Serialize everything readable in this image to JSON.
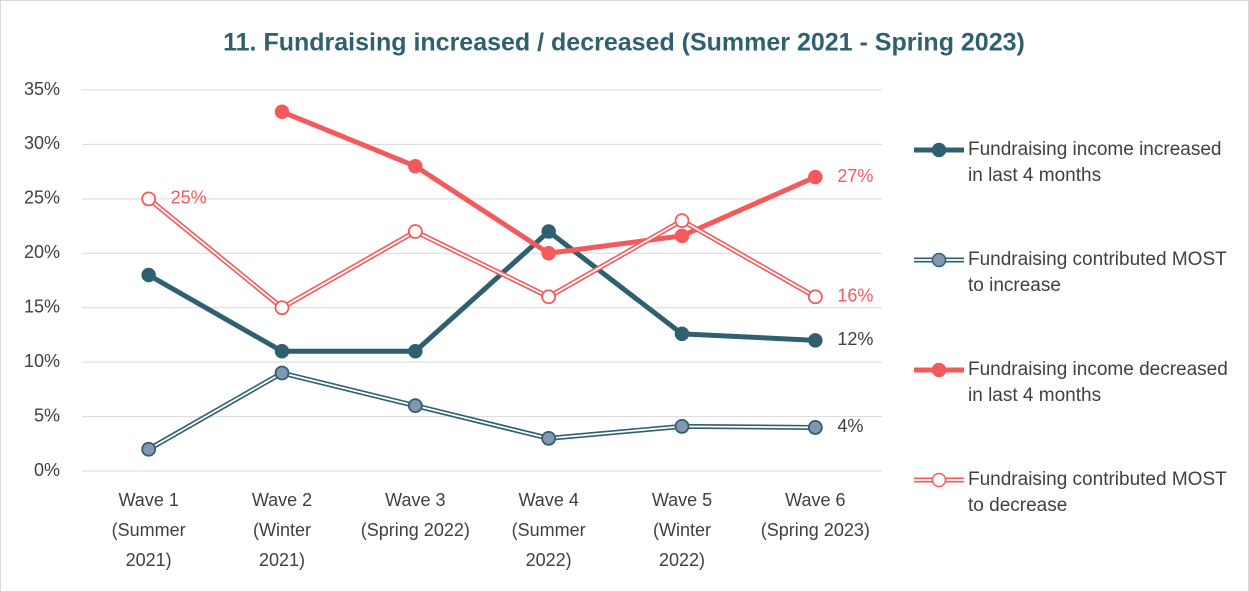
{
  "chart_data": {
    "type": "line",
    "title": "11. Fundraising increased / decreased (Summer 2021 - Spring 2023)",
    "categories": [
      "Wave 1\n(Summer\n2021)",
      "Wave 2\n(Winter\n2021)",
      "Wave 3\n(Spring 2022)",
      "Wave 4\n(Summer\n2022)",
      "Wave 5\n(Winter\n2022)",
      "Wave 6\n(Spring 2023)"
    ],
    "ylim": [
      0,
      35
    ],
    "yticks": [
      {
        "value": 0,
        "label": "0%"
      },
      {
        "value": 5,
        "label": "5%"
      },
      {
        "value": 10,
        "label": "10%"
      },
      {
        "value": 15,
        "label": "15%"
      },
      {
        "value": 20,
        "label": "20%"
      },
      {
        "value": 25,
        "label": "25%"
      },
      {
        "value": 30,
        "label": "30%"
      },
      {
        "value": 35,
        "label": "35%"
      }
    ],
    "grid": true,
    "legend": "right",
    "series": [
      {
        "name": "Fundraising income increased in last 4 months",
        "color": "#2e6070",
        "marker_fill": "#2e6070",
        "style": "solid",
        "values": [
          18,
          11,
          11,
          22,
          12.6,
          12
        ],
        "value_labels": [
          null,
          null,
          null,
          null,
          null,
          "12%"
        ]
      },
      {
        "name": "Fundraising contributed MOST to increase",
        "color": "#2e6070",
        "marker_fill": "#8497b0",
        "style": "double",
        "values": [
          2,
          9,
          6,
          3,
          4.1,
          4
        ],
        "value_labels": [
          null,
          null,
          null,
          null,
          null,
          "4%"
        ]
      },
      {
        "name": "Fundraising income decreased in last 4 months",
        "color": "#f4595b",
        "marker_fill": "#f4595b",
        "style": "solid",
        "values": [
          null,
          33,
          28,
          20,
          21.6,
          27
        ],
        "value_labels": [
          null,
          null,
          null,
          null,
          null,
          "27%"
        ]
      },
      {
        "name": "Fundraising contributed MOST to decrease",
        "color": "#f4595b",
        "marker_fill": "#ffffff",
        "style": "double",
        "values": [
          25,
          15,
          22,
          16,
          23,
          16
        ],
        "value_labels": [
          "25%",
          null,
          null,
          null,
          null,
          "16%"
        ]
      }
    ]
  }
}
